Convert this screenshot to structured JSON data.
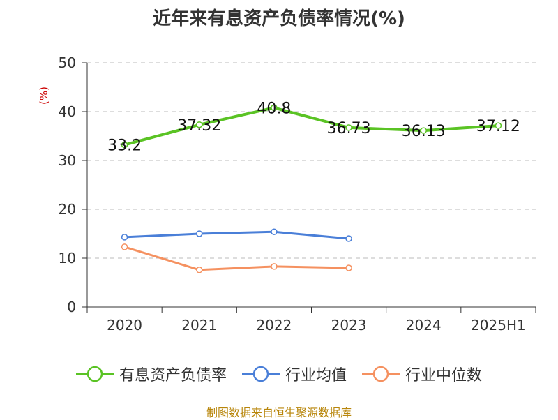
{
  "chart_data": {
    "type": "line",
    "title": "近年来有息资产负债率情况(%)",
    "ylabel": "(%)",
    "categories": [
      "2020",
      "2021",
      "2022",
      "2023",
      "2024",
      "2025H1"
    ],
    "ylim": [
      0,
      50
    ],
    "yticks": [
      0,
      10,
      20,
      30,
      40,
      50
    ],
    "grid": true,
    "legend_position": "bottom",
    "series": [
      {
        "name": "有息资产负债率",
        "color": "#5ac324",
        "values": [
          33.2,
          37.32,
          40.8,
          36.73,
          36.13,
          37.12
        ],
        "labels": [
          "33.2",
          "37.32",
          "40.8",
          "36.73",
          "36.13",
          "37.12"
        ]
      },
      {
        "name": "行业均值",
        "color": "#4a7fd8",
        "values": [
          14.3,
          15.0,
          15.4,
          14.0,
          null,
          null
        ]
      },
      {
        "name": "行业中位数",
        "color": "#f59160",
        "values": [
          12.3,
          7.6,
          8.3,
          8.0,
          null,
          null
        ]
      }
    ]
  },
  "source": "制图数据来自恒生聚源数据库"
}
